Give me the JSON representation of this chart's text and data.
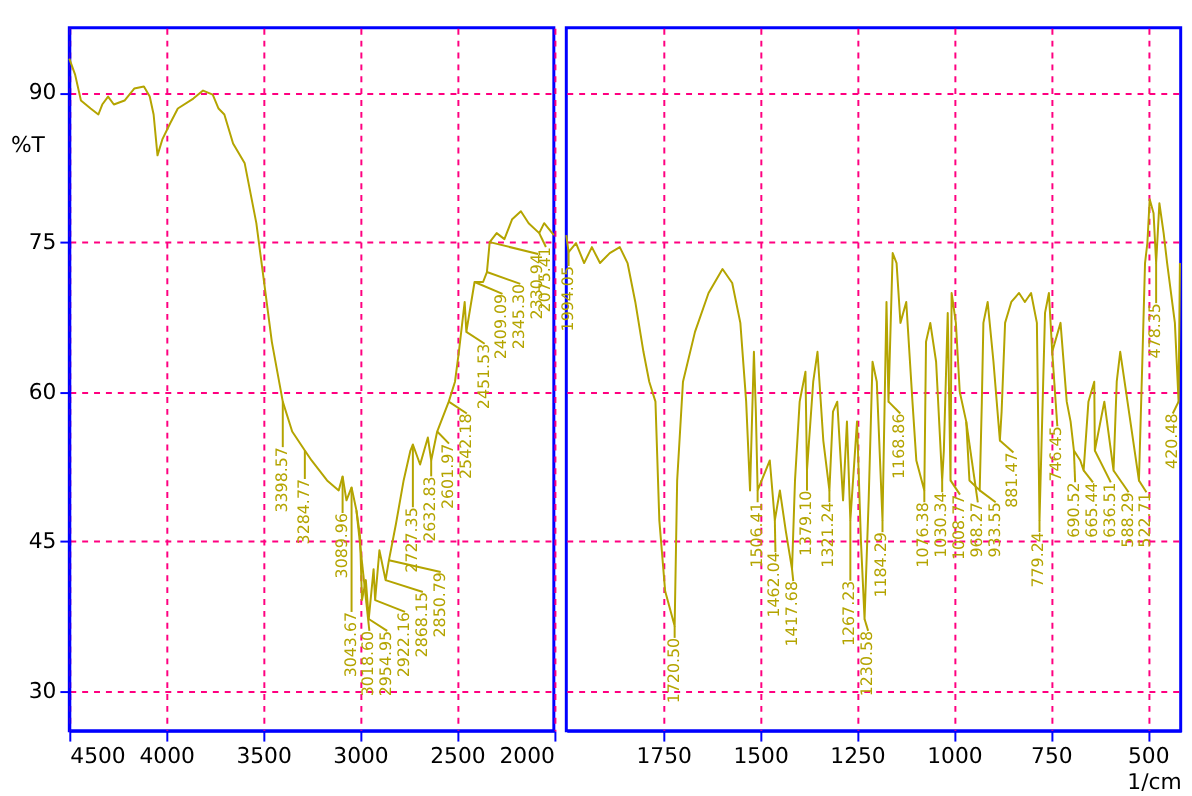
{
  "chart_data": [
    {
      "type": "line",
      "ylabel": "%T",
      "xlim": [
        4500,
        2000
      ],
      "ylim": [
        26,
        96.5
      ],
      "xticks": [
        4500,
        4000,
        3500,
        3000,
        2500,
        2000
      ],
      "yticks": [
        30,
        45,
        60,
        75,
        90
      ],
      "grid": true,
      "line_style": "solid",
      "series": [
        {
          "color": "#b4a400",
          "x": [
            4500,
            4470,
            4440,
            4390,
            4350,
            4330,
            4300,
            4270,
            4215,
            4165,
            4115,
            4085,
            4065,
            4045,
            4020,
            3980,
            3940,
            3860,
            3810,
            3760,
            3730,
            3700,
            3655,
            3595,
            3535,
            3495,
            3455,
            3398.57,
            3350,
            3284.77,
            3250,
            3170,
            3110,
            3089.96,
            3070,
            3043.67,
            3018.6,
            3000,
            2990,
            2970,
            2954.95,
            2930,
            2922.16,
            2900,
            2868.15,
            2850.79,
            2815,
            2775,
            2740,
            2727.35,
            2690,
            2650,
            2632.83,
            2601.97,
            2542.18,
            2510,
            2490,
            2460,
            2451.53,
            2409.09,
            2365,
            2345.3,
            2330.94,
            2295,
            2255,
            2215,
            2170,
            2130,
            2075.41,
            2050,
            2000
          ],
          "values": [
            93.4,
            91.8,
            89.2,
            88.4,
            87.8,
            88.8,
            89.6,
            88.8,
            89.2,
            90.4,
            90.6,
            89.6,
            87.8,
            83.7,
            85.3,
            86.9,
            88.4,
            89.4,
            90.2,
            89.8,
            88.4,
            87.8,
            84.9,
            82.9,
            76.9,
            71.0,
            65.0,
            59.0,
            56.0,
            54.1,
            53.1,
            51.1,
            50.1,
            51.5,
            49.1,
            50.4,
            48.1,
            45.5,
            39.1,
            41.1,
            37.2,
            42.2,
            39.1,
            44.1,
            41.1,
            43.1,
            46.7,
            51.1,
            54.1,
            54.7,
            52.7,
            55.4,
            53.1,
            56.0,
            59.0,
            61.0,
            64.0,
            69.0,
            66.0,
            71.0,
            71.0,
            72.0,
            75.0,
            75.9,
            75.3,
            77.3,
            78.1,
            76.9,
            75.9,
            76.9,
            75.7
          ]
        }
      ],
      "annotations": [
        {
          "text": "3398.57",
          "x": 3398.57,
          "y": 59.0
        },
        {
          "text": "3284.77",
          "x": 3284.77,
          "y": 54.1
        },
        {
          "text": "3089.96",
          "x": 3089.96,
          "y": 51.5
        },
        {
          "text": "3043.67",
          "x": 3043.67,
          "y": 50.4
        },
        {
          "text": "3018.60",
          "x": 3018.6,
          "y": 48.1
        },
        {
          "text": "2954.95",
          "x": 2954.95,
          "y": 37.2
        },
        {
          "text": "2922.16",
          "x": 2922.16,
          "y": 39.1
        },
        {
          "text": "2868.15",
          "x": 2868.15,
          "y": 41.1
        },
        {
          "text": "2850.79",
          "x": 2850.79,
          "y": 43.1
        },
        {
          "text": "2727.35",
          "x": 2727.35,
          "y": 54.7
        },
        {
          "text": "2632.83",
          "x": 2632.83,
          "y": 53.1
        },
        {
          "text": "2601.97",
          "x": 2601.97,
          "y": 56.0
        },
        {
          "text": "2542.18",
          "x": 2542.18,
          "y": 59.0
        },
        {
          "text": "2451.53",
          "x": 2451.53,
          "y": 66.0
        },
        {
          "text": "2409.09",
          "x": 2409.09,
          "y": 71.0
        },
        {
          "text": "2345.30",
          "x": 2345.3,
          "y": 72.0
        },
        {
          "text": "2330.94",
          "x": 2330.94,
          "y": 75.0
        },
        {
          "text": "2075.41",
          "x": 2075.41,
          "y": 75.9
        }
      ]
    },
    {
      "type": "line",
      "xlabel": "1/cm",
      "xlim": [
        2000,
        415
      ],
      "ylim": [
        26,
        96.5
      ],
      "xticks": [
        1750,
        1500,
        1250,
        1000,
        750,
        500
      ],
      "yticks": [
        30,
        45,
        60,
        75,
        90
      ],
      "grid": true,
      "line_style": "solid",
      "tick_labels": "x",
      "series": [
        {
          "color": "#b4a400",
          "x": [
            2000,
            1994.05,
            1975,
            1954,
            1934,
            1913,
            1888,
            1862,
            1842,
            1822,
            1801,
            1786,
            1770,
            1760,
            1745,
            1720.5,
            1714,
            1699,
            1668,
            1633,
            1597,
            1572,
            1551,
            1536,
            1526,
            1516,
            1511,
            1506.41,
            1475,
            1462.04,
            1449,
            1434,
            1417.68,
            1410,
            1398,
            1383,
            1379.1,
            1363,
            1352,
            1337,
            1321.24,
            1312,
            1301,
            1286,
            1276,
            1267.23,
            1250,
            1240,
            1230.58,
            1220,
            1210,
            1199,
            1184.29,
            1174,
            1168.86,
            1158,
            1148,
            1138,
            1123,
            1107,
            1097,
            1076.38,
            1072,
            1061,
            1046,
            1030.34,
            1026,
            1016,
            1008.77,
            1006,
            995,
            985,
            968.27,
            960,
            933.55,
            928,
            924,
            913,
            898,
            881.47,
            877,
            868,
            852,
            832,
            817,
            801,
            786,
            779.24,
            765,
            755,
            746.45,
            725,
            709,
            699,
            690.52,
            674,
            665.44,
            653,
            638,
            636.51,
            612,
            588.29,
            580,
            571,
            556,
            522.71,
            514,
            507,
            501,
            495,
            485,
            478.35,
            470,
            459,
            450,
            430,
            420.48,
            417
          ],
          "values": [
            75.7,
            74.0,
            74.9,
            72.9,
            74.5,
            72.9,
            73.9,
            74.5,
            72.9,
            69.0,
            64.0,
            61.0,
            59.0,
            47.1,
            40.0,
            36.5,
            51.1,
            61.0,
            66.0,
            69.9,
            72.3,
            70.9,
            66.9,
            59.0,
            50.1,
            64.0,
            58.0,
            50.1,
            53.1,
            47.1,
            50.1,
            46.1,
            42.2,
            51.1,
            59.0,
            62.0,
            52.1,
            61.0,
            64.0,
            55.1,
            50.1,
            58.0,
            59.0,
            49.1,
            57.0,
            47.1,
            57.0,
            45.1,
            37.2,
            49.1,
            63.0,
            61.0,
            47.1,
            69.0,
            59.0,
            73.9,
            72.9,
            66.9,
            69.0,
            59.0,
            53.1,
            50.1,
            65.0,
            66.9,
            63.0,
            51.1,
            54.1,
            67.9,
            51.1,
            69.9,
            66.9,
            60.0,
            57.0,
            51.1,
            50.1,
            59.0,
            66.9,
            69.0,
            63.0,
            55.1,
            58.0,
            66.9,
            69.0,
            69.9,
            69.0,
            69.9,
            66.9,
            47.1,
            67.9,
            69.9,
            64.0,
            66.9,
            59.0,
            57.0,
            54.1,
            53.1,
            52.1,
            59.0,
            61.0,
            54.1,
            59.0,
            52.1,
            61.0,
            64.0,
            60.0,
            51.1,
            63.0,
            72.9,
            74.9,
            79.3,
            77.9,
            72.9,
            78.9,
            75.9,
            72.9,
            66.9,
            59.0,
            72.9
          ]
        }
      ],
      "annotations": [
        {
          "text": "1994.05",
          "x": 1994.05,
          "y": 74.0
        },
        {
          "text": "1720.50",
          "x": 1720.5,
          "y": 36.5
        },
        {
          "text": "1506.41",
          "x": 1506.41,
          "y": 50.1
        },
        {
          "text": "1462.04",
          "x": 1462.04,
          "y": 47.1
        },
        {
          "text": "1417.68",
          "x": 1417.68,
          "y": 42.2
        },
        {
          "text": "1379.10",
          "x": 1379.1,
          "y": 52.1
        },
        {
          "text": "1321.24",
          "x": 1321.24,
          "y": 50.1
        },
        {
          "text": "1267.23",
          "x": 1267.23,
          "y": 47.1
        },
        {
          "text": "1230.58",
          "x": 1230.58,
          "y": 37.2
        },
        {
          "text": "1184.29",
          "x": 1184.29,
          "y": 47.1
        },
        {
          "text": "1168.86",
          "x": 1168.86,
          "y": 59.0
        },
        {
          "text": "1076.38",
          "x": 1076.38,
          "y": 50.1
        },
        {
          "text": "1030.34",
          "x": 1030.34,
          "y": 51.1
        },
        {
          "text": "1008.77",
          "x": 1008.77,
          "y": 51.1
        },
        {
          "text": "968.27",
          "x": 968.27,
          "y": 57.0
        },
        {
          "text": "933.55",
          "x": 933.55,
          "y": 50.1
        },
        {
          "text": "881.47",
          "x": 881.47,
          "y": 55.1
        },
        {
          "text": "779.24",
          "x": 779.24,
          "y": 47.1
        },
        {
          "text": "746.45",
          "x": 746.45,
          "y": 64.0
        },
        {
          "text": "690.52",
          "x": 690.52,
          "y": 54.1
        },
        {
          "text": "665.44",
          "x": 665.44,
          "y": 52.1
        },
        {
          "text": "636.51",
          "x": 636.51,
          "y": 54.1
        },
        {
          "text": "588.29",
          "x": 588.29,
          "y": 52.1
        },
        {
          "text": "522.71",
          "x": 522.71,
          "y": 51.1
        },
        {
          "text": "478.35",
          "x": 478.35,
          "y": 72.9
        },
        {
          "text": "420.48",
          "x": 420.48,
          "y": 59.0
        }
      ]
    }
  ]
}
